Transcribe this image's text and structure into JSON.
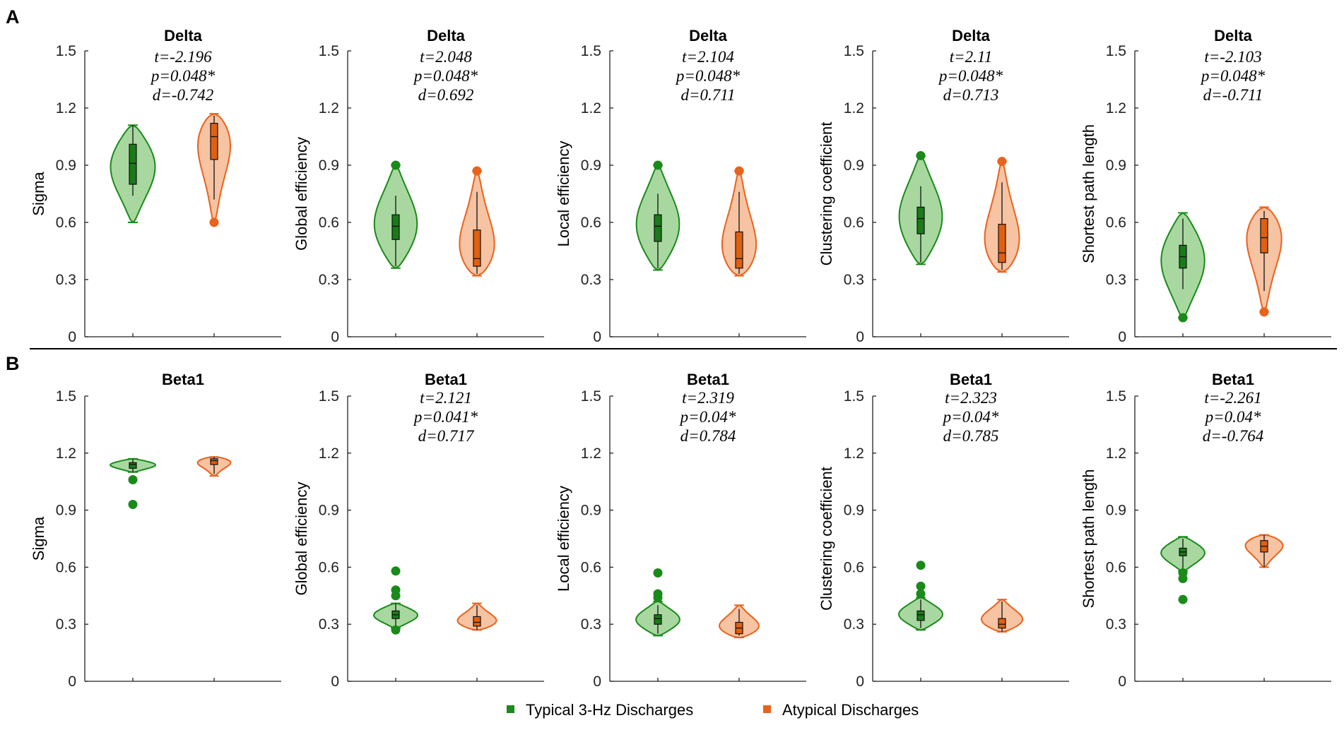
{
  "figure": {
    "panel_labels": [
      "A",
      "B"
    ],
    "legend": [
      {
        "label": "Typical 3-Hz Discharges",
        "color": "#1a8a1a"
      },
      {
        "label": "Atypical Discharges",
        "color": "#e8631c"
      }
    ],
    "colors": {
      "typical_stroke": "#1a8a1a",
      "typical_fill": "#a8d8a0",
      "typical_box": "#1a7a1a",
      "atypical_stroke": "#e8631c",
      "atypical_fill": "#f6c3a3",
      "atypical_box": "#e06010"
    }
  },
  "chart_data": [
    {
      "type": "violin",
      "row": "A",
      "title": "Delta",
      "ylabel": "Sigma",
      "ylim": [
        0,
        1.5
      ],
      "yticks": [
        "0",
        "0.3",
        "0.6",
        "0.9",
        "1.2",
        "1.5"
      ],
      "stats": [
        "t=-2.196",
        "p=0.048*",
        "d=-0.742"
      ],
      "series": [
        {
          "name": "Typical 3-Hz Discharges",
          "min": 0.6,
          "max": 1.11,
          "q1": 0.8,
          "median": 0.91,
          "q3": 1.01,
          "wlo": 0.74,
          "whi": 1.11,
          "outliers": [],
          "peak": 0.92,
          "width": 0.52
        },
        {
          "name": "Atypical Discharges",
          "min": 0.6,
          "max": 1.17,
          "q1": 0.93,
          "median": 1.05,
          "q3": 1.12,
          "wlo": 0.72,
          "whi": 1.16,
          "outliers": [
            0.6
          ],
          "peak": 1.12,
          "width": 0.48
        }
      ]
    },
    {
      "type": "violin",
      "row": "A",
      "title": "Delta",
      "ylabel": "Global efficiency",
      "ylim": [
        0,
        1.5
      ],
      "yticks": [
        "0",
        "0.3",
        "0.6",
        "0.9",
        "1.2",
        "1.5"
      ],
      "stats": [
        "t=2.048",
        "p=0.048*",
        "d=0.692"
      ],
      "series": [
        {
          "name": "Typical 3-Hz Discharges",
          "min": 0.36,
          "max": 0.9,
          "q1": 0.51,
          "median": 0.58,
          "q3": 0.64,
          "wlo": 0.37,
          "whi": 0.74,
          "outliers": [
            0.9
          ],
          "peak": 0.56,
          "width": 0.5
        },
        {
          "name": "Atypical Discharges",
          "min": 0.32,
          "max": 0.87,
          "q1": 0.37,
          "median": 0.41,
          "q3": 0.56,
          "wlo": 0.33,
          "whi": 0.76,
          "outliers": [
            0.87
          ],
          "peak": 0.38,
          "width": 0.5
        }
      ]
    },
    {
      "type": "violin",
      "row": "A",
      "title": "Delta",
      "ylabel": "Local efficiency",
      "ylim": [
        0,
        1.5
      ],
      "yticks": [
        "0",
        "0.3",
        "0.6",
        "0.9",
        "1.2",
        "1.5"
      ],
      "stats": [
        "t=2.104",
        "p=0.048*",
        "d=0.711"
      ],
      "series": [
        {
          "name": "Typical 3-Hz Discharges",
          "min": 0.35,
          "max": 0.9,
          "q1": 0.5,
          "median": 0.58,
          "q3": 0.64,
          "wlo": 0.36,
          "whi": 0.75,
          "outliers": [
            0.9
          ],
          "peak": 0.56,
          "width": 0.5
        },
        {
          "name": "Atypical Discharges",
          "min": 0.32,
          "max": 0.87,
          "q1": 0.36,
          "median": 0.41,
          "q3": 0.55,
          "wlo": 0.33,
          "whi": 0.76,
          "outliers": [
            0.87
          ],
          "peak": 0.37,
          "width": 0.5
        }
      ]
    },
    {
      "type": "violin",
      "row": "A",
      "title": "Delta",
      "ylabel": "Clustering coefficient",
      "ylim": [
        0,
        1.5
      ],
      "yticks": [
        "0",
        "0.3",
        "0.6",
        "0.9",
        "1.2",
        "1.5"
      ],
      "stats": [
        "t=2.11",
        "p=0.048*",
        "d=0.713"
      ],
      "series": [
        {
          "name": "Typical 3-Hz Discharges",
          "min": 0.38,
          "max": 0.95,
          "q1": 0.54,
          "median": 0.62,
          "q3": 0.68,
          "wlo": 0.39,
          "whi": 0.79,
          "outliers": [
            0.95
          ],
          "peak": 0.6,
          "width": 0.5
        },
        {
          "name": "Atypical Discharges",
          "min": 0.34,
          "max": 0.92,
          "q1": 0.39,
          "median": 0.44,
          "q3": 0.59,
          "wlo": 0.35,
          "whi": 0.81,
          "outliers": [
            0.92
          ],
          "peak": 0.4,
          "width": 0.5
        }
      ]
    },
    {
      "type": "violin",
      "row": "A",
      "title": "Delta",
      "ylabel": "Shortest path length",
      "ylim": [
        0,
        1.5
      ],
      "yticks": [
        "0",
        "0.3",
        "0.6",
        "0.9",
        "1.2",
        "1.5"
      ],
      "stats": [
        "t=-2.103",
        "p=0.048*",
        "d=-0.711"
      ],
      "series": [
        {
          "name": "Typical 3-Hz Discharges",
          "min": 0.1,
          "max": 0.65,
          "q1": 0.36,
          "median": 0.42,
          "q3": 0.48,
          "wlo": 0.25,
          "whi": 0.62,
          "outliers": [
            0.1
          ],
          "peak": 0.42,
          "width": 0.5
        },
        {
          "name": "Atypical Discharges",
          "min": 0.13,
          "max": 0.68,
          "q1": 0.44,
          "median": 0.52,
          "q3": 0.62,
          "wlo": 0.24,
          "whi": 0.66,
          "outliers": [
            0.13
          ],
          "peak": 0.62,
          "width": 0.5
        }
      ]
    },
    {
      "type": "violin",
      "row": "B",
      "title": "Beta1",
      "ylabel": "Sigma",
      "ylim": [
        0,
        1.5
      ],
      "yticks": [
        "0",
        "0.3",
        "0.6",
        "0.9",
        "1.2",
        "1.5"
      ],
      "stats": [],
      "series": [
        {
          "name": "Typical 3-Hz Discharges",
          "min": 1.1,
          "max": 1.17,
          "q1": 1.12,
          "median": 1.14,
          "q3": 1.15,
          "wlo": 1.1,
          "whi": 1.17,
          "outliers": [
            1.06,
            0.93
          ],
          "peak": 1.14,
          "width": 0.52
        },
        {
          "name": "Atypical Discharges",
          "min": 1.08,
          "max": 1.18,
          "q1": 1.14,
          "median": 1.16,
          "q3": 1.17,
          "wlo": 1.09,
          "whi": 1.18,
          "outliers": [],
          "peak": 1.17,
          "width": 0.48
        }
      ]
    },
    {
      "type": "violin",
      "row": "B",
      "title": "Beta1",
      "ylabel": "Global efficiency",
      "ylim": [
        0,
        1.5
      ],
      "yticks": [
        "0",
        "0.3",
        "0.6",
        "0.9",
        "1.2",
        "1.5"
      ],
      "stats": [
        "t=2.121",
        "p=0.041*",
        "d=0.717"
      ],
      "series": [
        {
          "name": "Typical 3-Hz Discharges",
          "min": 0.28,
          "max": 0.41,
          "q1": 0.33,
          "median": 0.35,
          "q3": 0.37,
          "wlo": 0.29,
          "whi": 0.41,
          "outliers": [
            0.58,
            0.48,
            0.45,
            0.27
          ],
          "peak": 0.35,
          "width": 0.5
        },
        {
          "name": "Atypical Discharges",
          "min": 0.27,
          "max": 0.41,
          "q1": 0.29,
          "median": 0.31,
          "q3": 0.34,
          "wlo": 0.27,
          "whi": 0.4,
          "outliers": [],
          "peak": 0.3,
          "width": 0.5
        }
      ]
    },
    {
      "type": "violin",
      "row": "B",
      "title": "Beta1",
      "ylabel": "Local efficiency",
      "ylim": [
        0,
        1.5
      ],
      "yticks": [
        "0",
        "0.3",
        "0.6",
        "0.9",
        "1.2",
        "1.5"
      ],
      "stats": [
        "t=2.319",
        "p=0.04*",
        "d=0.784"
      ],
      "series": [
        {
          "name": "Typical 3-Hz Discharges",
          "min": 0.24,
          "max": 0.42,
          "q1": 0.3,
          "median": 0.33,
          "q3": 0.35,
          "wlo": 0.25,
          "whi": 0.4,
          "outliers": [
            0.57,
            0.46,
            0.44
          ],
          "peak": 0.32,
          "width": 0.5
        },
        {
          "name": "Atypical Discharges",
          "min": 0.23,
          "max": 0.4,
          "q1": 0.25,
          "median": 0.28,
          "q3": 0.31,
          "wlo": 0.24,
          "whi": 0.38,
          "outliers": [],
          "peak": 0.27,
          "width": 0.5
        }
      ]
    },
    {
      "type": "violin",
      "row": "B",
      "title": "Beta1",
      "ylabel": "Clustering coefficient",
      "ylim": [
        0,
        1.5
      ],
      "yticks": [
        "0",
        "0.3",
        "0.6",
        "0.9",
        "1.2",
        "1.5"
      ],
      "stats": [
        "t=2.323",
        "p=0.04*",
        "d=0.785"
      ],
      "series": [
        {
          "name": "Typical 3-Hz Discharges",
          "min": 0.27,
          "max": 0.44,
          "q1": 0.32,
          "median": 0.35,
          "q3": 0.37,
          "wlo": 0.28,
          "whi": 0.43,
          "outliers": [
            0.61,
            0.5,
            0.46
          ],
          "peak": 0.35,
          "width": 0.5
        },
        {
          "name": "Atypical Discharges",
          "min": 0.26,
          "max": 0.43,
          "q1": 0.28,
          "median": 0.3,
          "q3": 0.33,
          "wlo": 0.26,
          "whi": 0.42,
          "outliers": [],
          "peak": 0.31,
          "width": 0.5
        }
      ]
    },
    {
      "type": "violin",
      "row": "B",
      "title": "Beta1",
      "ylabel": "Shortest path length",
      "ylim": [
        0,
        1.5
      ],
      "yticks": [
        "0",
        "0.3",
        "0.6",
        "0.9",
        "1.2",
        "1.5"
      ],
      "stats": [
        "t=-2.261",
        "p=0.04*",
        "d=-0.764"
      ],
      "series": [
        {
          "name": "Typical 3-Hz Discharges",
          "min": 0.58,
          "max": 0.76,
          "q1": 0.66,
          "median": 0.68,
          "q3": 0.7,
          "wlo": 0.59,
          "whi": 0.75,
          "outliers": [
            0.57,
            0.54,
            0.43
          ],
          "peak": 0.68,
          "width": 0.5
        },
        {
          "name": "Atypical Discharges",
          "min": 0.6,
          "max": 0.77,
          "q1": 0.68,
          "median": 0.71,
          "q3": 0.74,
          "wlo": 0.6,
          "whi": 0.77,
          "outliers": [],
          "peak": 0.74,
          "width": 0.5
        }
      ]
    }
  ]
}
